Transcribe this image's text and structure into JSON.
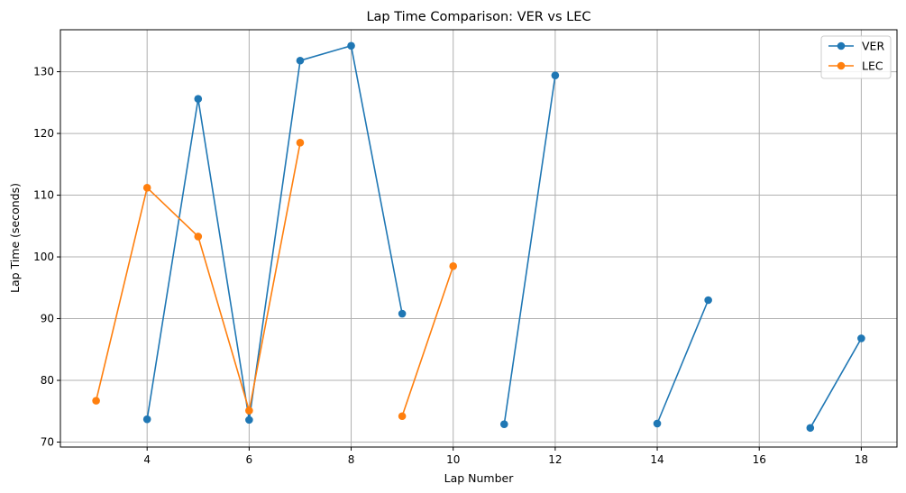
{
  "chart_data": {
    "type": "line",
    "title": "Lap Time Comparison: VER vs LEC",
    "xlabel": "Lap Number",
    "ylabel": "Lap Time (seconds)",
    "xlim": [
      2.3,
      18.7
    ],
    "ylim": [
      69.2,
      136.8
    ],
    "xticks": [
      4,
      6,
      8,
      10,
      12,
      14,
      16,
      18
    ],
    "yticks": [
      70,
      80,
      90,
      100,
      110,
      120,
      130
    ],
    "grid": true,
    "legend_position": "top-right",
    "series": [
      {
        "name": "VER",
        "color": "#1f77b4",
        "segments": [
          [
            [
              4,
              73.7
            ],
            [
              5,
              125.6
            ],
            [
              6,
              73.6
            ],
            [
              7,
              131.8
            ],
            [
              8,
              134.2
            ],
            [
              9,
              90.8
            ]
          ],
          [
            [
              11,
              72.9
            ],
            [
              12,
              129.4
            ]
          ],
          [
            [
              14,
              73.0
            ],
            [
              15,
              93.0
            ]
          ],
          [
            [
              17,
              72.3
            ],
            [
              18,
              86.8
            ]
          ]
        ]
      },
      {
        "name": "LEC",
        "color": "#ff7f0e",
        "segments": [
          [
            [
              3,
              76.7
            ],
            [
              4,
              111.2
            ],
            [
              5,
              103.3
            ],
            [
              6,
              75.1
            ],
            [
              7,
              118.5
            ]
          ],
          [
            [
              9,
              74.2
            ],
            [
              10,
              98.5
            ]
          ]
        ]
      }
    ]
  }
}
